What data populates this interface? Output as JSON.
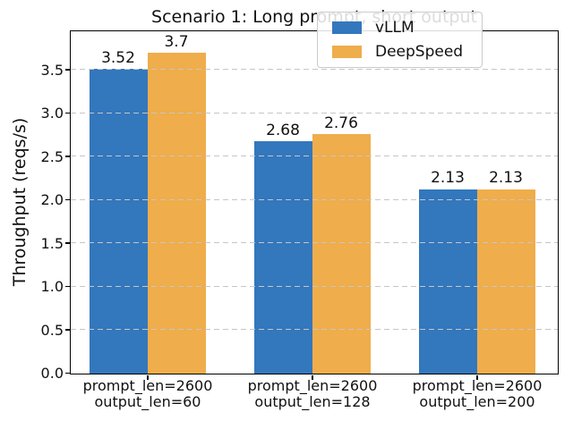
{
  "chart_data": {
    "type": "bar",
    "title": "Scenario 1: Long prompt, short output",
    "ylabel": "Throughput (reqs/s)",
    "xlabel": "",
    "categories": [
      [
        "prompt_len=2600",
        "output_len=60"
      ],
      [
        "prompt_len=2600",
        "output_len=128"
      ],
      [
        "prompt_len=2600",
        "output_len=200"
      ]
    ],
    "series": [
      {
        "name": "vLLM",
        "color": "#3377bd",
        "values": [
          3.52,
          2.68,
          2.13
        ],
        "value_labels": [
          "3.52",
          "2.68",
          "2.13"
        ]
      },
      {
        "name": "DeepSpeed",
        "color": "#efad4b",
        "values": [
          3.7,
          2.76,
          2.13
        ],
        "value_labels": [
          "3.7",
          "2.76",
          "2.13"
        ]
      }
    ],
    "ylim": [
      0,
      3.94
    ],
    "yticks": [
      0.0,
      0.5,
      1.0,
      1.5,
      2.0,
      2.5,
      3.0,
      3.5
    ],
    "grid": "horizontal dashed",
    "grid_color": "#c6c6c6",
    "legend_position": "upper right",
    "background_color": "#ffffff",
    "text_color": "#111111"
  }
}
